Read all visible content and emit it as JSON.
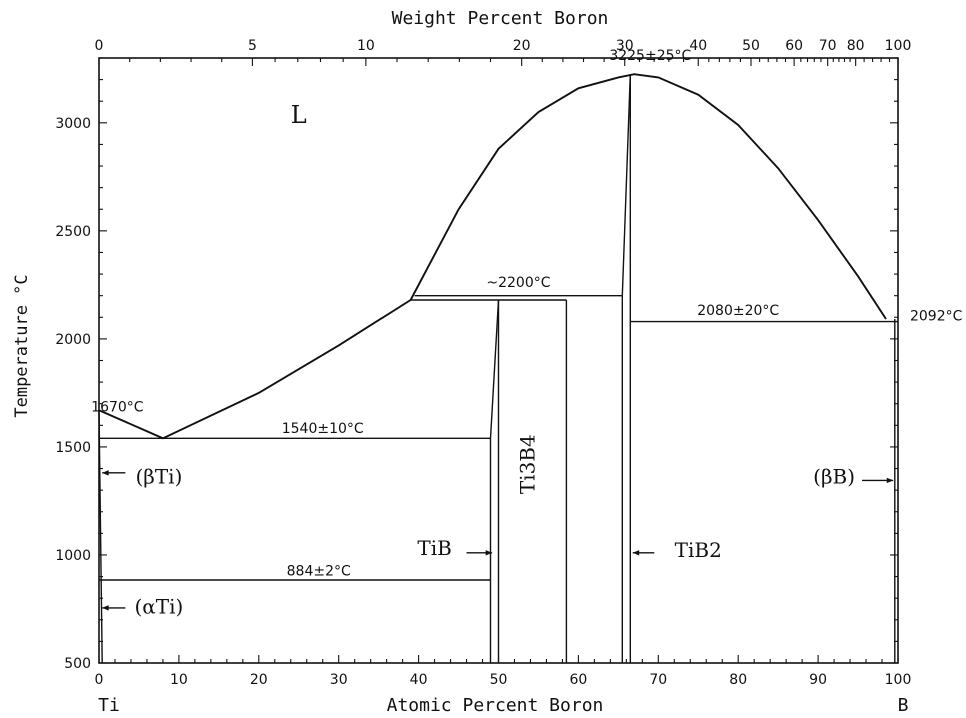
{
  "chart_data": {
    "type": "line",
    "title": "",
    "top_xlabel": "Weight Percent Boron",
    "xlabel": "Atomic Percent Boron",
    "ylabel": "Temperature °C",
    "xlim": [
      0,
      100
    ],
    "ylim": [
      500,
      3300
    ],
    "bottom_ticks": [
      "0",
      "10",
      "20",
      "30",
      "40",
      "50",
      "60",
      "70",
      "80",
      "90",
      "100"
    ],
    "top_ticks": [
      {
        "label": "0",
        "at": 0
      },
      {
        "label": "5",
        "at": 19.2
      },
      {
        "label": "10",
        "at": 33.4
      },
      {
        "label": "20",
        "at": 52.9
      },
      {
        "label": "30",
        "at": 65.8
      },
      {
        "label": "40",
        "at": 75.0
      },
      {
        "label": "50",
        "at": 81.6
      },
      {
        "label": "60",
        "at": 87.0
      },
      {
        "label": "70",
        "at": 91.2
      },
      {
        "label": "80",
        "at": 94.7
      },
      {
        "label": "100",
        "at": 100
      }
    ],
    "y_ticks": [
      "500",
      "1000",
      "1500",
      "2000",
      "2500",
      "3000"
    ],
    "end_labels": {
      "left": "Ti",
      "right": "B"
    },
    "series": [
      {
        "name": "",
        "x": [
          0,
          8,
          20,
          30,
          39
        ],
        "y": [
          1670,
          1540,
          1750,
          1970,
          2180
        ]
      },
      {
        "name": "",
        "x": [
          39,
          45,
          50,
          55,
          60,
          65,
          67,
          70,
          75,
          80,
          85,
          90,
          95,
          98.5
        ],
        "y": [
          2180,
          2600,
          2880,
          3050,
          3160,
          3210,
          3225,
          3210,
          3130,
          2990,
          2790,
          2550,
          2290,
          2092
        ]
      },
      {
        "name": "",
        "x": [
          0,
          49
        ],
        "y": [
          1540,
          1540
        ]
      },
      {
        "name": "",
        "x": [
          0,
          49
        ],
        "y": [
          884,
          884
        ]
      },
      {
        "name": "",
        "x": [
          39.5,
          65.5
        ],
        "y": [
          2200,
          2200
        ]
      },
      {
        "name": "",
        "x": [
          39,
          58.5
        ],
        "y": [
          2180,
          2180
        ]
      },
      {
        "name": "",
        "x": [
          66.5,
          100
        ],
        "y": [
          2080,
          2080
        ]
      },
      {
        "name": "",
        "x": [
          49,
          49
        ],
        "y": [
          500,
          1540
        ]
      },
      {
        "name": "",
        "x": [
          49,
          50
        ],
        "y": [
          1540,
          2180
        ]
      },
      {
        "name": "",
        "x": [
          50,
          50
        ],
        "y": [
          500,
          2180
        ]
      },
      {
        "name": "",
        "x": [
          58.5,
          58.5
        ],
        "y": [
          500,
          2180
        ]
      },
      {
        "name": "",
        "x": [
          65.5,
          65.5
        ],
        "y": [
          500,
          2200
        ]
      },
      {
        "name": "",
        "x": [
          65.5,
          66.5
        ],
        "y": [
          2200,
          3225
        ]
      },
      {
        "name": "",
        "x": [
          66.5,
          66.5
        ],
        "y": [
          500,
          3225
        ]
      },
      {
        "name": "",
        "x": [
          99.6,
          99.6
        ],
        "y": [
          500,
          2092
        ]
      },
      {
        "name": "",
        "x": [
          0,
          0.4
        ],
        "y": [
          1670,
          500
        ]
      }
    ],
    "annotations": [
      {
        "text": "L",
        "x": 25,
        "y": 3000
      },
      {
        "text": "3225±25°C",
        "x": 69,
        "y": 3290
      },
      {
        "text": "~2200°C",
        "x": 52.5,
        "y": 2240
      },
      {
        "text": "2080±20°C",
        "x": 80,
        "y": 2110
      },
      {
        "text": "2092°C",
        "x": 101.5,
        "y": 2085
      },
      {
        "text": "1670°C",
        "x": 2.3,
        "y": 1665
      },
      {
        "text": "1540±10°C",
        "x": 28,
        "y": 1565
      },
      {
        "text": "884±2°C",
        "x": 27.5,
        "y": 905
      },
      {
        "text": "(βTi)",
        "x": 7.5,
        "y": 1330
      },
      {
        "text": "(αTi)",
        "x": 7.5,
        "y": 730
      },
      {
        "text": "TiB",
        "x": 42,
        "y": 1000
      },
      {
        "text": "Ti3B4",
        "x": 54.5,
        "y": 1420
      },
      {
        "text": "TiB2",
        "x": 75,
        "y": 990
      },
      {
        "text": "(βB)",
        "x": 92,
        "y": 1330
      }
    ]
  }
}
